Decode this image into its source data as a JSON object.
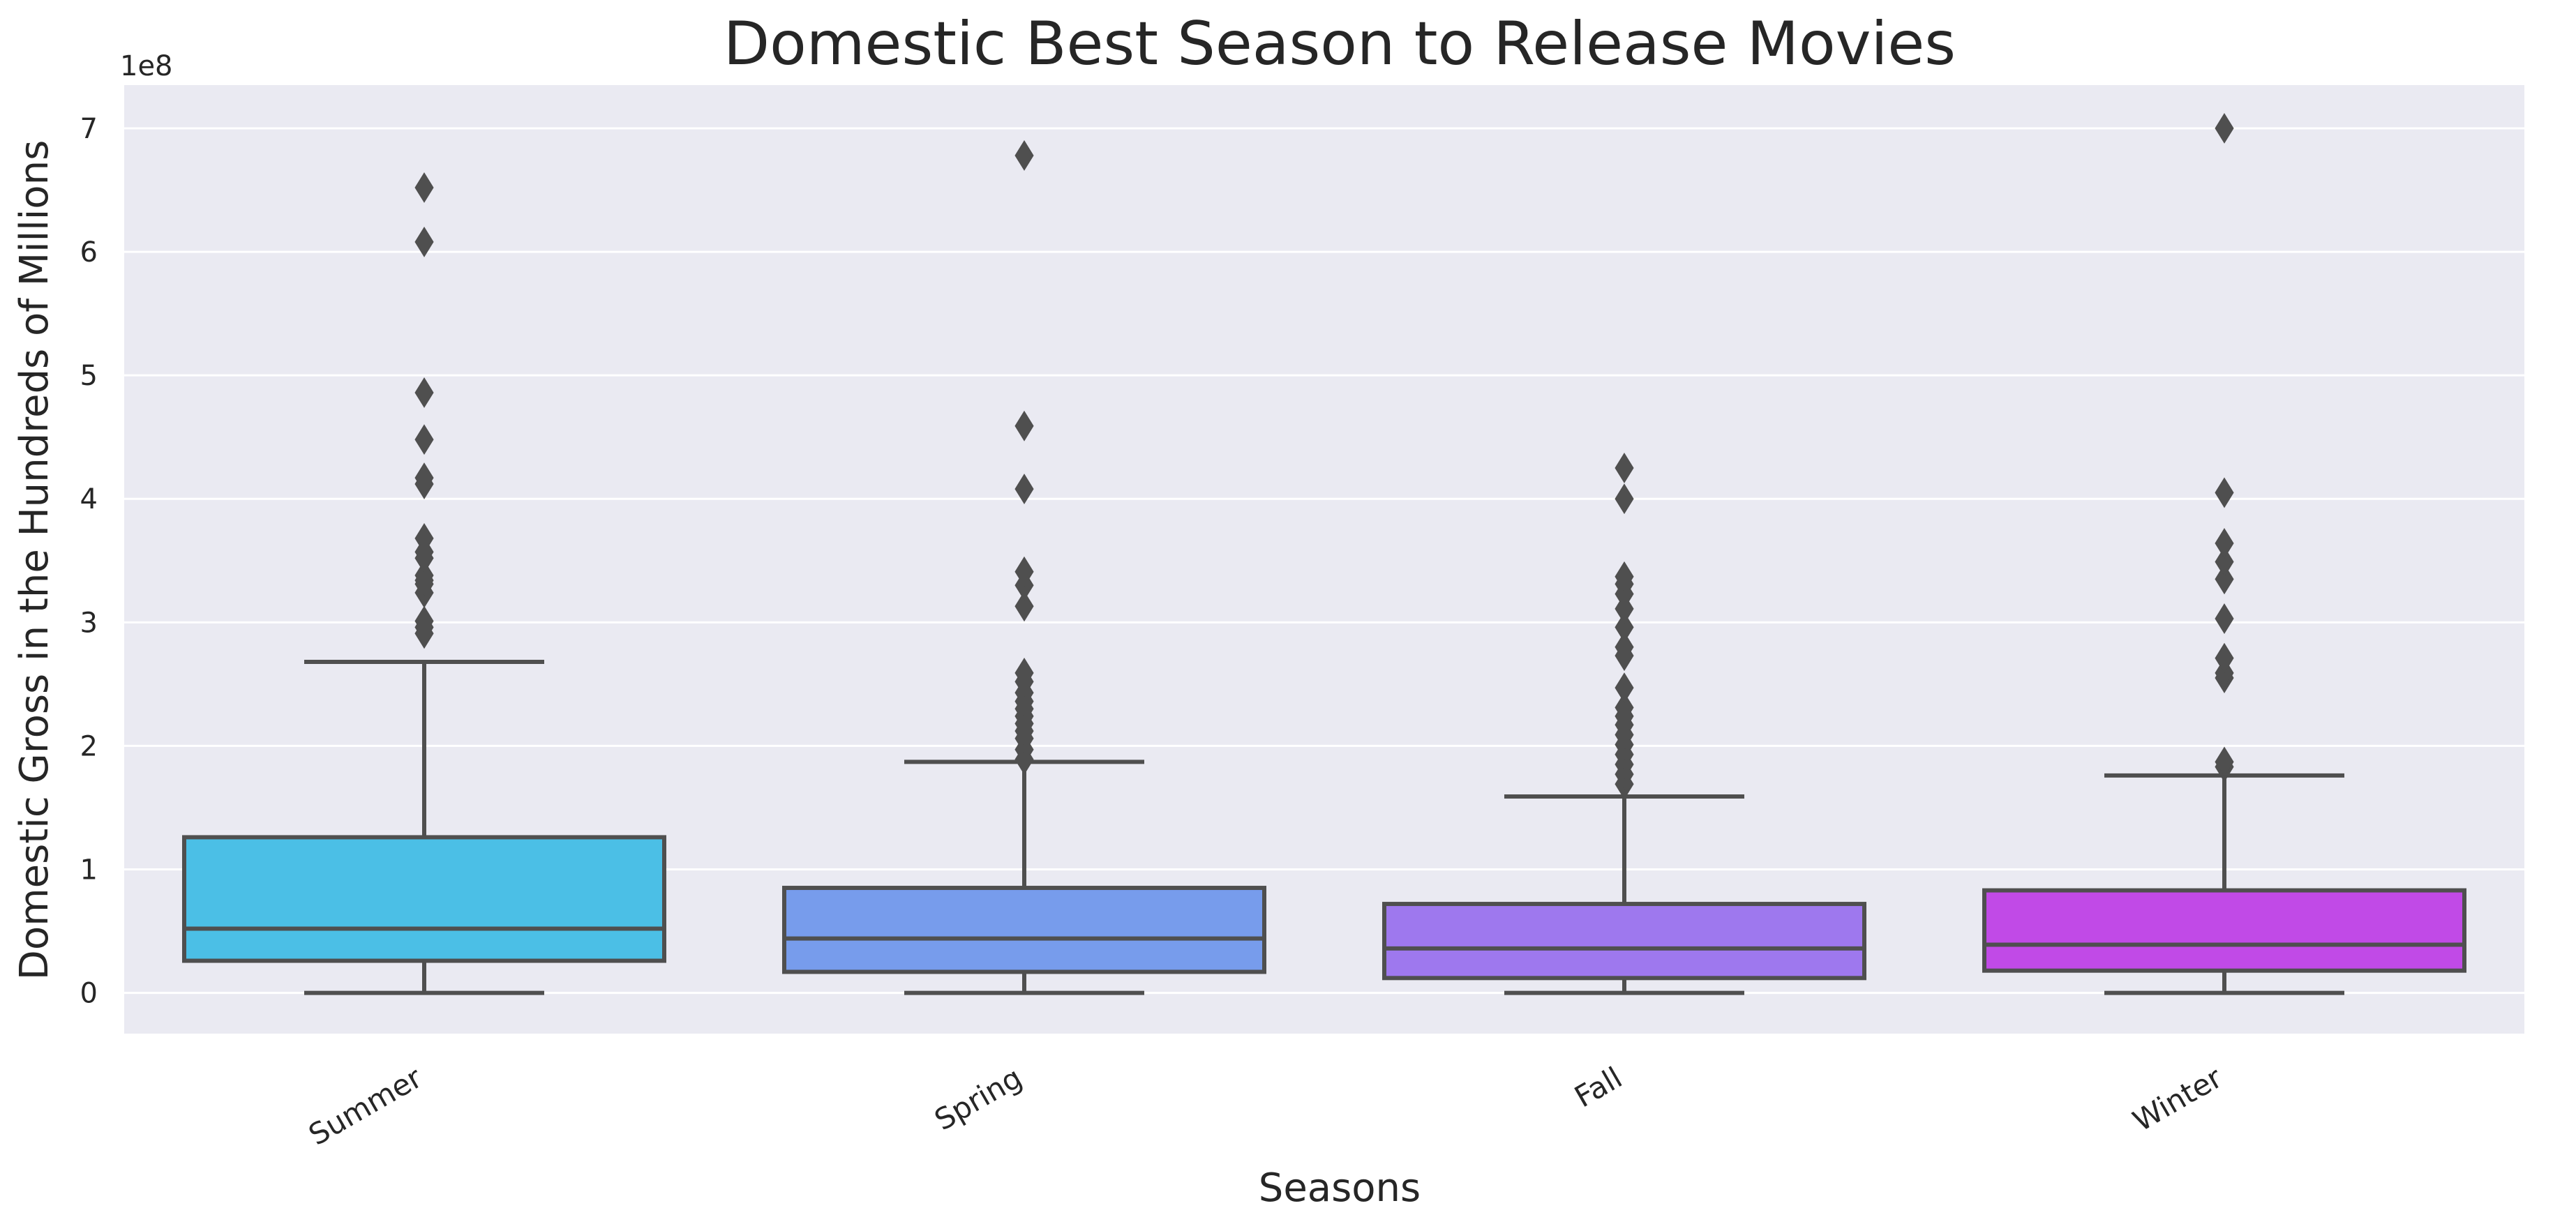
{
  "chart_data": {
    "type": "box",
    "title": "Domestic Best Season to Release Movies",
    "xlabel": "Seasons",
    "ylabel": "Domestic Gross in the Hundreds of Millions",
    "y_offset_text": "1e8",
    "ylim": [
      -0.33,
      7.35
    ],
    "y_unit_multiplier": 100000000,
    "yticks": [
      0,
      1,
      2,
      3,
      4,
      5,
      6,
      7
    ],
    "grid": true,
    "categories": [
      "Summer",
      "Spring",
      "Fall",
      "Winter"
    ],
    "boxes": [
      {
        "category": "Summer",
        "color": "#4bbfe6",
        "whisker_low": 0.0,
        "q1": 0.26,
        "median": 0.52,
        "q3": 1.26,
        "whisker_high": 2.68,
        "outliers": [
          2.91,
          2.96,
          3.01,
          3.24,
          3.31,
          3.34,
          3.38,
          3.52,
          3.57,
          3.68,
          4.12,
          4.17,
          4.48,
          4.86,
          6.08,
          6.52
        ]
      },
      {
        "category": "Spring",
        "color": "#779cec",
        "whisker_low": 0.0,
        "q1": 0.17,
        "median": 0.44,
        "q3": 0.85,
        "whisker_high": 1.87,
        "outliers": [
          1.89,
          1.97,
          2.06,
          2.12,
          2.18,
          2.24,
          2.3,
          2.36,
          2.43,
          2.52,
          2.59,
          3.13,
          3.3,
          3.41,
          4.08,
          4.59,
          6.78
        ]
      },
      {
        "category": "Fall",
        "color": "#9e78ee",
        "whisker_low": 0.0,
        "q1": 0.12,
        "median": 0.36,
        "q3": 0.72,
        "whisker_high": 1.59,
        "outliers": [
          1.69,
          1.77,
          1.85,
          1.93,
          2.01,
          2.09,
          2.17,
          2.24,
          2.31,
          2.47,
          2.73,
          2.8,
          2.96,
          3.11,
          3.23,
          3.31,
          3.37,
          4.0,
          4.25
        ]
      },
      {
        "category": "Winter",
        "color": "#c14ae7",
        "whisker_low": 0.0,
        "q1": 0.18,
        "median": 0.39,
        "q3": 0.83,
        "whisker_high": 1.76,
        "outliers": [
          1.83,
          1.87,
          2.55,
          2.59,
          2.71,
          3.03,
          3.35,
          3.49,
          3.64,
          4.05,
          7.0
        ]
      }
    ],
    "colors": {
      "plot_background": "#eaeaf2",
      "grid": "#ffffff",
      "lines": "#4f4f4f",
      "text": "#262626"
    }
  }
}
